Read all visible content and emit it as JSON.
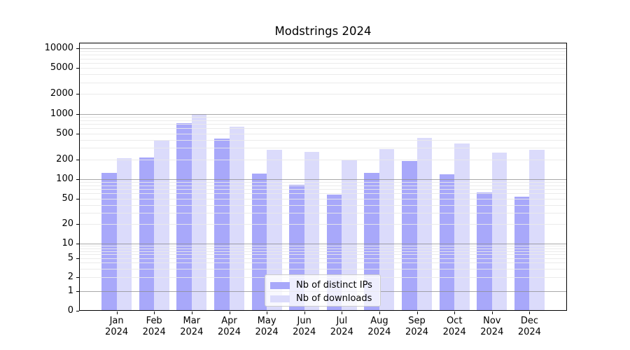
{
  "title": "Modstrings 2024",
  "chart_data": {
    "type": "bar",
    "title": "Modstrings 2024",
    "categories": [
      "Jan 2024",
      "Feb 2024",
      "Mar 2024",
      "Apr 2024",
      "May 2024",
      "Jun 2024",
      "Jul 2024",
      "Aug 2024",
      "Sep 2024",
      "Oct 2024",
      "Nov 2024",
      "Dec 2024"
    ],
    "month_labels": [
      "Jan",
      "Feb",
      "Mar",
      "Apr",
      "May",
      "Jun",
      "Jul",
      "Aug",
      "Sep",
      "Oct",
      "Nov",
      "Dec"
    ],
    "year_label": "2024",
    "series": [
      {
        "name": "Nb of distinct IPs",
        "color": "#a8a8fa",
        "values": [
          126,
          215,
          725,
          420,
          123,
          82,
          58,
          125,
          192,
          118,
          62,
          53
        ]
      },
      {
        "name": "Nb of downloads",
        "color": "#dbdbfb",
        "values": [
          210,
          385,
          1000,
          630,
          285,
          260,
          195,
          290,
          430,
          355,
          255,
          285
        ]
      }
    ],
    "xlabel": "",
    "ylabel": "",
    "yscale": "symlog",
    "ylim": [
      0,
      10000
    ],
    "y_ticks": [
      0,
      1,
      2,
      5,
      10,
      20,
      50,
      100,
      200,
      500,
      1000,
      2000,
      5000,
      10000
    ],
    "grid": {
      "major": true,
      "minor": true,
      "drawn_above_bars": true
    },
    "legend_position": "lower center"
  },
  "legend": {
    "items": [
      {
        "label": "Nb of distinct IPs",
        "color": "#a8a8fa"
      },
      {
        "label": "Nb of downloads",
        "color": "#dbdbfb"
      }
    ]
  },
  "colors": {
    "background": "#ffffff",
    "bar_distinct_ips": "#a8a8fa",
    "bar_downloads": "#dbdbfb",
    "grid_major": "#8c8c8c",
    "grid_minor": "#e9e9e9",
    "axis": "#000000",
    "legend_border": "#cccccc"
  }
}
